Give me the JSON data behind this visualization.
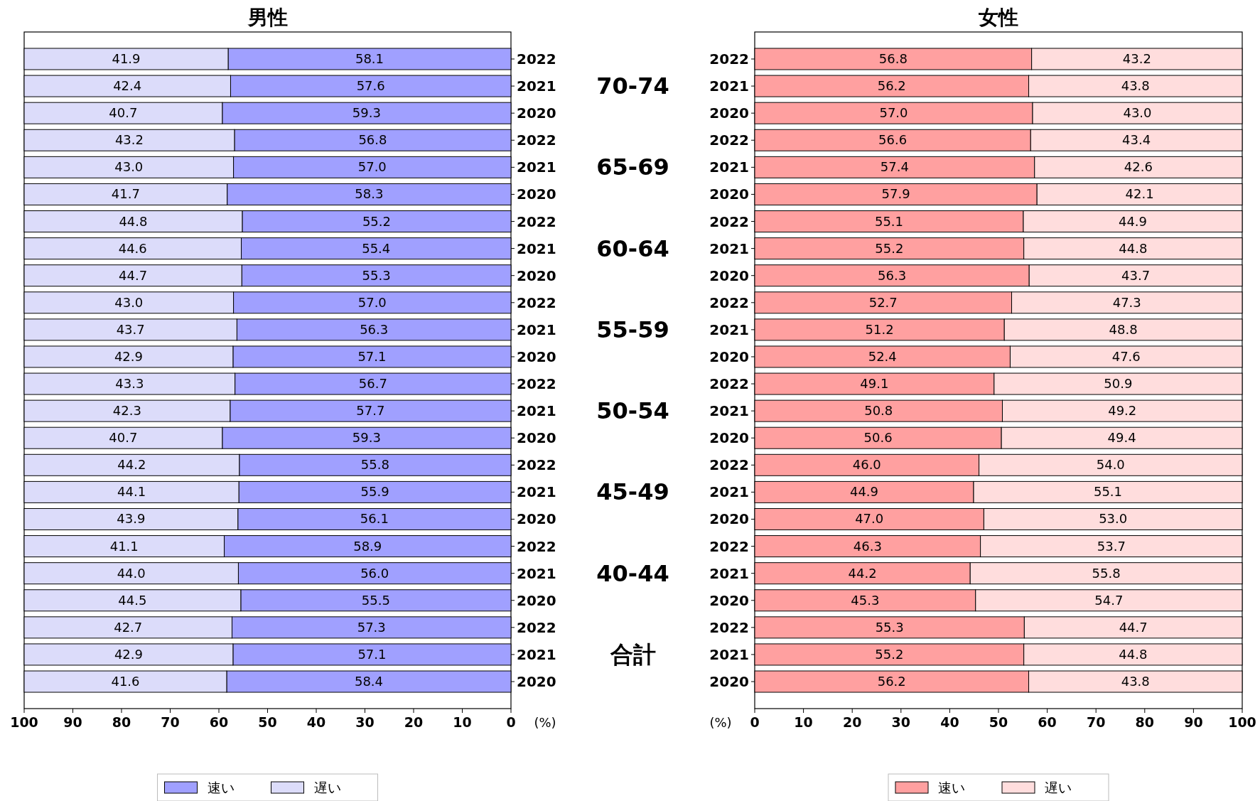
{
  "chart_data": [
    {
      "type": "bar",
      "orientation": "horizontal",
      "stacked": true,
      "title": "男性",
      "xlabel": "(%)",
      "categories": [
        "2022",
        "2021",
        "2020",
        "2022",
        "2021",
        "2020",
        "2022",
        "2021",
        "2020",
        "2022",
        "2021",
        "2020",
        "2022",
        "2021",
        "2020",
        "2022",
        "2021",
        "2020",
        "2022",
        "2021",
        "2020",
        "2022",
        "2021",
        "2020"
      ],
      "series": [
        {
          "name": "速い",
          "color": "#a0a0ff",
          "values": [
            58.1,
            57.6,
            59.3,
            56.8,
            57.0,
            58.3,
            55.2,
            55.4,
            55.3,
            57.0,
            56.3,
            57.1,
            56.7,
            57.7,
            59.3,
            55.8,
            55.9,
            56.1,
            58.9,
            56.0,
            55.5,
            57.3,
            57.1,
            58.4
          ],
          "value_labels": [
            "58.1",
            "57.6",
            "59.3",
            "56.8",
            "57.0",
            "58.3",
            "55.2",
            "55.4",
            "55.3",
            "57.0",
            "56.3",
            "57.1",
            "56.7",
            "57.7",
            "59.3",
            "55.8",
            "55.9",
            "56.1",
            "58.9",
            "56.0",
            "55.5",
            "57.3",
            "57.1",
            "58.4"
          ]
        },
        {
          "name": "遅い",
          "color": "#dcdcfa",
          "values": [
            41.9,
            42.4,
            40.7,
            43.2,
            43.0,
            41.7,
            44.8,
            44.6,
            44.7,
            43.0,
            43.7,
            42.9,
            43.3,
            42.3,
            40.7,
            44.2,
            44.1,
            43.9,
            41.1,
            44.0,
            44.5,
            42.7,
            42.9,
            41.6
          ],
          "value_labels": [
            "41.9",
            "42.4",
            "40.7",
            "43.2",
            "43.0",
            "41.7",
            "44.8",
            "44.6",
            "44.7",
            "43.0",
            "43.7",
            "42.9",
            "43.3",
            "42.3",
            "40.7",
            "44.2",
            "44.1",
            "43.9",
            "41.1",
            "44.0",
            "44.5",
            "42.7",
            "42.9",
            "41.6"
          ]
        }
      ],
      "xlim": [
        100,
        0
      ],
      "xticks": [
        100,
        90,
        80,
        70,
        60,
        50,
        40,
        30,
        20,
        10,
        0
      ],
      "legend": "bottom",
      "annotations": [
        "70-74",
        "65-69",
        "60-64",
        "55-59",
        "50-54",
        "45-49",
        "40-44",
        "合計"
      ]
    },
    {
      "type": "bar",
      "orientation": "horizontal",
      "stacked": true,
      "title": "女性",
      "xlabel": "(%)",
      "categories": [
        "2022",
        "2021",
        "2020",
        "2022",
        "2021",
        "2020",
        "2022",
        "2021",
        "2020",
        "2022",
        "2021",
        "2020",
        "2022",
        "2021",
        "2020",
        "2022",
        "2021",
        "2020",
        "2022",
        "2021",
        "2020",
        "2022",
        "2021",
        "2020"
      ],
      "series": [
        {
          "name": "速い",
          "color": "#ffa0a0",
          "values": [
            56.8,
            56.2,
            57.0,
            56.6,
            57.4,
            57.9,
            55.1,
            55.2,
            56.3,
            52.7,
            51.2,
            52.4,
            49.1,
            50.8,
            50.6,
            46.0,
            44.9,
            47.0,
            46.3,
            44.2,
            45.3,
            55.3,
            55.2,
            56.2
          ],
          "value_labels": [
            "56.8",
            "56.2",
            "57.0",
            "56.6",
            "57.4",
            "57.9",
            "55.1",
            "55.2",
            "56.3",
            "52.7",
            "51.2",
            "52.4",
            "49.1",
            "50.8",
            "50.6",
            "46.0",
            "44.9",
            "47.0",
            "46.3",
            "44.2",
            "45.3",
            "55.3",
            "55.2",
            "56.2"
          ]
        },
        {
          "name": "遅い",
          "color": "#ffdddd",
          "values": [
            43.2,
            43.8,
            43.0,
            43.4,
            42.6,
            42.1,
            44.9,
            44.8,
            43.7,
            47.3,
            48.8,
            47.6,
            50.9,
            49.2,
            49.4,
            54.0,
            55.1,
            53.0,
            53.7,
            55.8,
            54.7,
            44.7,
            44.8,
            43.8
          ],
          "value_labels": [
            "43.2",
            "43.8",
            "43.0",
            "43.4",
            "42.6",
            "42.1",
            "44.9",
            "44.8",
            "43.7",
            "47.3",
            "48.8",
            "47.6",
            "50.9",
            "49.2",
            "49.4",
            "54.0",
            "55.1",
            "53.0",
            "53.7",
            "55.8",
            "54.7",
            "44.7",
            "44.8",
            "43.8"
          ]
        }
      ],
      "xlim": [
        0,
        100
      ],
      "xticks": [
        0,
        10,
        20,
        30,
        40,
        50,
        60,
        70,
        80,
        90,
        100
      ],
      "legend": "bottom"
    }
  ]
}
